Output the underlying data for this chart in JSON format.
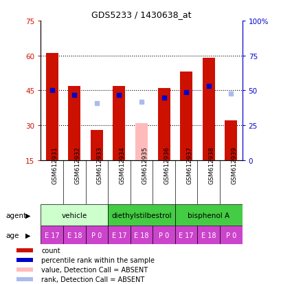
{
  "title": "GDS5233 / 1430638_at",
  "samples": [
    "GSM612931",
    "GSM612932",
    "GSM612933",
    "GSM612934",
    "GSM612935",
    "GSM612936",
    "GSM612937",
    "GSM612938",
    "GSM612939"
  ],
  "count_values": [
    61,
    47,
    28,
    47,
    null,
    46,
    53,
    59,
    32
  ],
  "count_absent": [
    null,
    null,
    null,
    null,
    31,
    null,
    null,
    null,
    null
  ],
  "rank_values": [
    50,
    47,
    null,
    47,
    null,
    45,
    49,
    53,
    null
  ],
  "rank_absent": [
    null,
    null,
    41,
    null,
    42,
    null,
    null,
    null,
    48
  ],
  "ylim_left": [
    15,
    75
  ],
  "ylim_right": [
    0,
    100
  ],
  "yticks_left": [
    15,
    30,
    45,
    60,
    75
  ],
  "yticks_right": [
    0,
    25,
    50,
    75,
    100
  ],
  "ytick_labels_right": [
    "0",
    "25",
    "50",
    "75",
    "100%"
  ],
  "bar_bottom": 15,
  "bar_width": 0.55,
  "count_color": "#cc1100",
  "count_absent_color": "#ffbbbb",
  "rank_color": "#0000cc",
  "rank_absent_color": "#aabbee",
  "rank_marker_size": 5,
  "agent_configs": [
    {
      "start": 0,
      "end": 3,
      "label": "vehicle",
      "color": "#ccffcc"
    },
    {
      "start": 3,
      "end": 6,
      "label": "diethylstilbestrol",
      "color": "#44cc44"
    },
    {
      "start": 6,
      "end": 9,
      "label": "bisphenol A",
      "color": "#44cc44"
    }
  ],
  "age_labels": [
    "E 17",
    "E 18",
    "P 0",
    "E 17",
    "E 18",
    "P 0",
    "E 17",
    "E 18",
    "P 0"
  ],
  "age_color": "#cc44cc",
  "left_axis_color": "#cc1100",
  "right_axis_color": "#0000cc",
  "legend_items": [
    {
      "label": "count",
      "color": "#cc1100"
    },
    {
      "label": "percentile rank within the sample",
      "color": "#0000cc"
    },
    {
      "label": "value, Detection Call = ABSENT",
      "color": "#ffbbbb"
    },
    {
      "label": "rank, Detection Call = ABSENT",
      "color": "#aabbee"
    }
  ]
}
